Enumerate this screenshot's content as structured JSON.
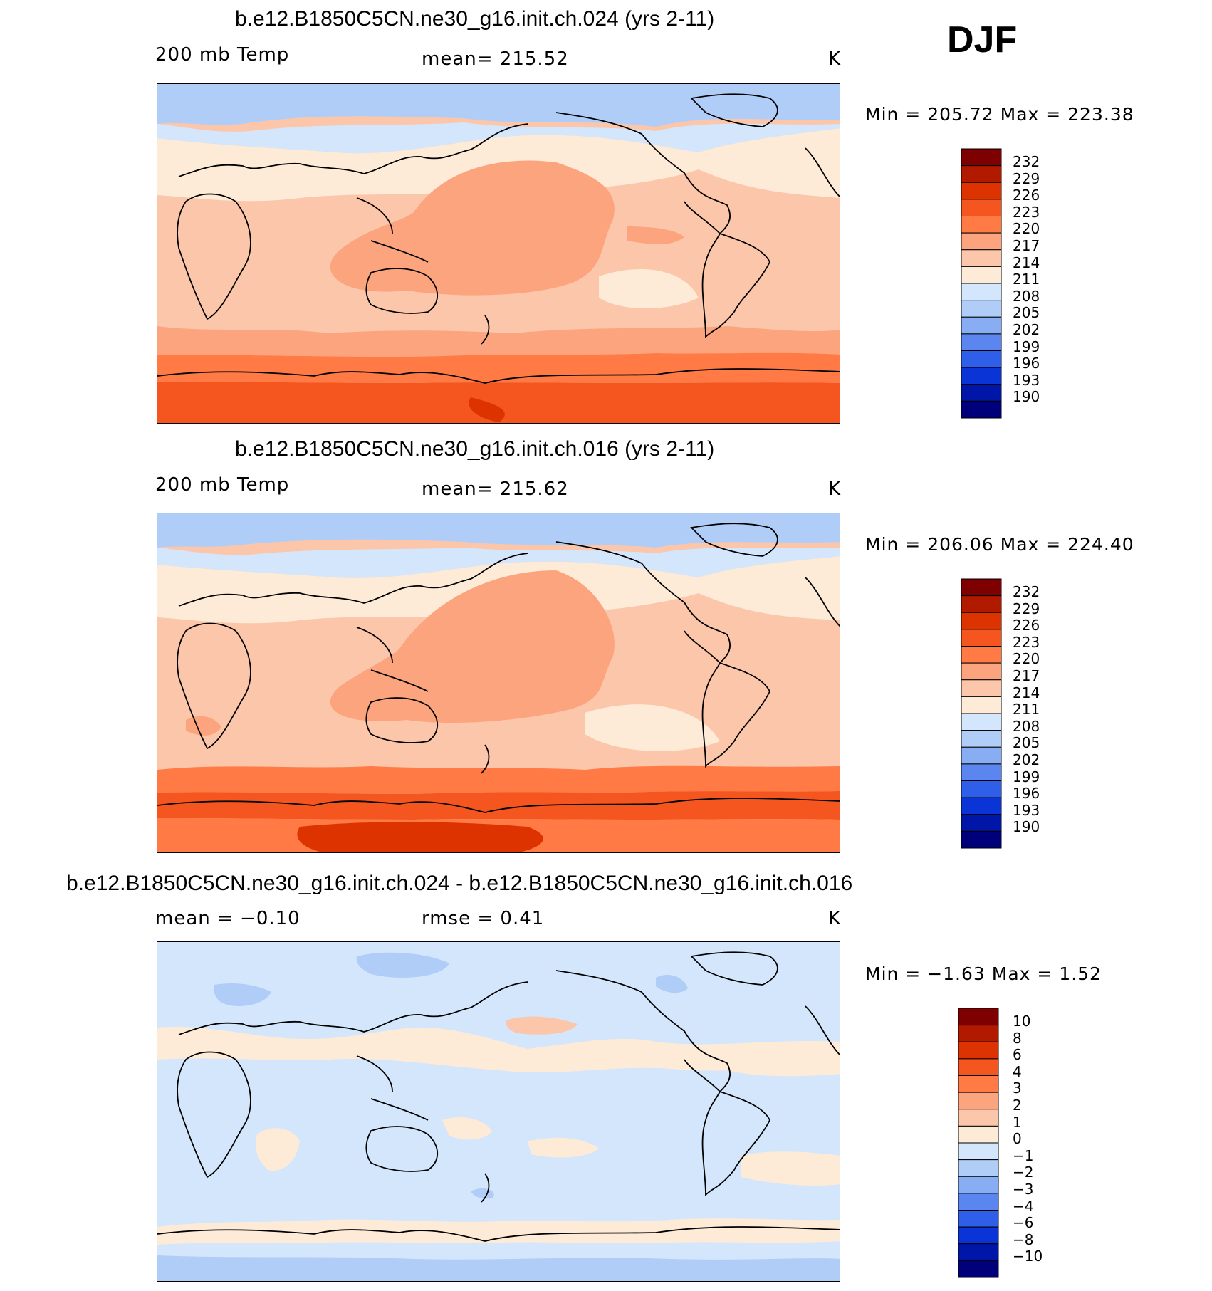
{
  "season": "DJF",
  "panels": [
    {
      "title": "b.e12.B1850C5CN.ne30_g16.init.ch.024 (yrs 2-11)",
      "left_label": "200 mb Temp",
      "center_label": "mean=  215.52",
      "units": "K",
      "minmax": "Min  =  205.72  Max  =  223.38",
      "colorbar_levels": [
        "232",
        "229",
        "226",
        "223",
        "220",
        "217",
        "214",
        "211",
        "208",
        "205",
        "202",
        "199",
        "196",
        "193",
        "190"
      ]
    },
    {
      "title": "b.e12.B1850C5CN.ne30_g16.init.ch.016 (yrs 2-11)",
      "left_label": "200 mb Temp",
      "center_label": "mean=  215.62",
      "units": "K",
      "minmax": "Min  =  206.06  Max  =  224.40",
      "colorbar_levels": [
        "232",
        "229",
        "226",
        "223",
        "220",
        "217",
        "214",
        "211",
        "208",
        "205",
        "202",
        "199",
        "196",
        "193",
        "190"
      ]
    },
    {
      "title": "b.e12.B1850C5CN.ne30_g16.init.ch.024 - b.e12.B1850C5CN.ne30_g16.init.ch.016",
      "left_label": "mean  =    −0.10",
      "center_label": "rmse  =     0.41",
      "units": "K",
      "minmax": "Min  =    −1.63  Max  =     1.52",
      "colorbar_levels": [
        "10",
        "8",
        "6",
        "4",
        "3",
        "2",
        "1",
        "0",
        "−1",
        "−2",
        "−3",
        "−4",
        "−6",
        "−8",
        "−10"
      ]
    }
  ],
  "colorbar_colors": [
    "#7f0000",
    "#b21a00",
    "#dd3300",
    "#f5551e",
    "#ff7a45",
    "#fca47e",
    "#fcc6ab",
    "#fdebd8",
    "#d4e6fb",
    "#b0cdf7",
    "#89adf3",
    "#5b85ef",
    "#2f5fe8",
    "#0a34d6",
    "#0016a8",
    "#00007a"
  ]
}
